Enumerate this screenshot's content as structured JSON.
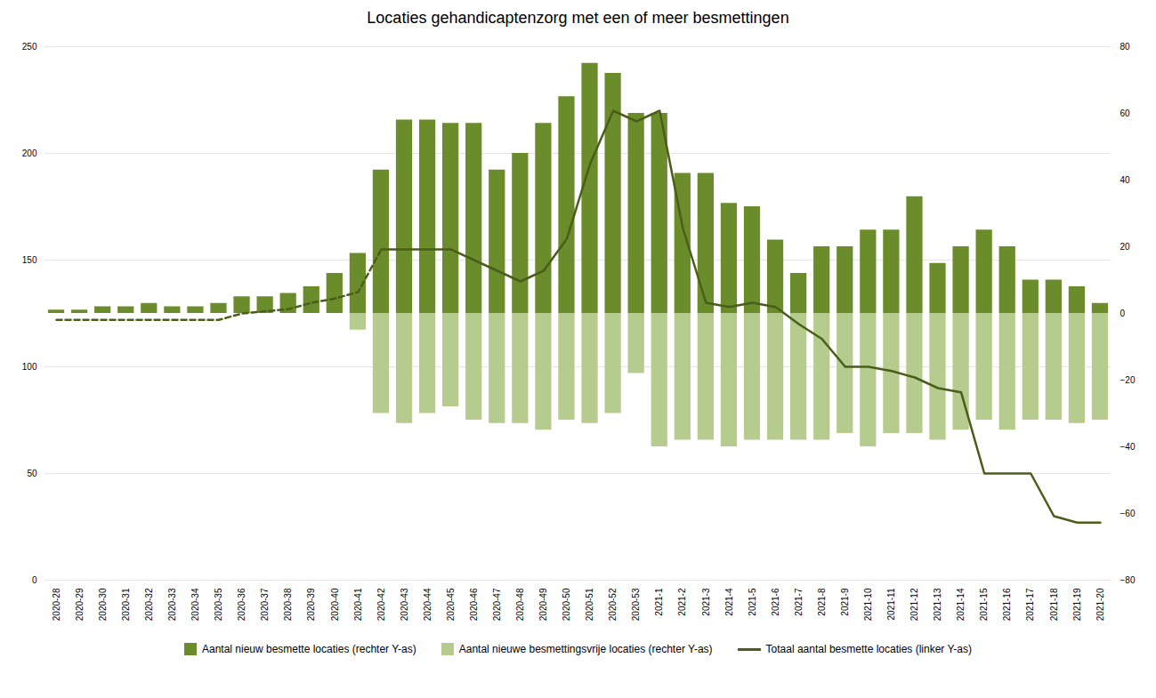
{
  "chart_data": {
    "type": "bar",
    "title": "Locaties gehandicaptenzorg met een of meer besmettingen",
    "categories": [
      "2020-28",
      "2020-29",
      "2020-30",
      "2020-31",
      "2020-32",
      "2020-33",
      "2020-34",
      "2020-35",
      "2020-36",
      "2020-37",
      "2020-38",
      "2020-39",
      "2020-40",
      "2020-41",
      "2020-42",
      "2020-43",
      "2020-44",
      "2020-45",
      "2020-46",
      "2020-47",
      "2020-48",
      "2020-49",
      "2020-50",
      "2020-51",
      "2020-52",
      "2020-53",
      "2021-1",
      "2021-2",
      "2021-3",
      "2021-4",
      "2021-5",
      "2021-6",
      "2021-7",
      "2021-8",
      "2021-9",
      "2021-10",
      "2021-11",
      "2021-12",
      "2021-13",
      "2021-14",
      "2021-15",
      "2021-16",
      "2021-17",
      "2021-18",
      "2021-19",
      "2021-20"
    ],
    "series": [
      {
        "name": "Aantal nieuw besmette locaties (rechter Y-as)",
        "type": "bar",
        "color": "#6a8c2b",
        "axis": "y2",
        "values": [
          1,
          1,
          2,
          2,
          3,
          2,
          2,
          3,
          5,
          5,
          6,
          8,
          12,
          18,
          43,
          58,
          58,
          57,
          57,
          43,
          48,
          57,
          65,
          75,
          72,
          60,
          60,
          42,
          42,
          33,
          32,
          22,
          12,
          20,
          20,
          25,
          25,
          35,
          15,
          20,
          25,
          20,
          10,
          10,
          8,
          3
        ]
      },
      {
        "name": "Aantal nieuwe besmettingsvrije locaties (rechter Y-as)",
        "type": "bar",
        "color": "#b5cc8e",
        "axis": "y2",
        "values": [
          0,
          0,
          0,
          0,
          0,
          0,
          0,
          0,
          0,
          0,
          0,
          0,
          0,
          -5,
          -30,
          -33,
          -30,
          -28,
          -32,
          -33,
          -33,
          -35,
          -32,
          -33,
          -30,
          -18,
          -40,
          -38,
          -38,
          -40,
          -38,
          -38,
          -38,
          -38,
          -36,
          -40,
          -36,
          -36,
          -38,
          -35,
          -32,
          -35,
          -32,
          -32,
          -33,
          -32
        ]
      },
      {
        "type": "line",
        "color": "#4a5e1a",
        "line_style": "dashed",
        "values": [
          122,
          122,
          122,
          122,
          122,
          122,
          122,
          122,
          125,
          126,
          127,
          130,
          132,
          135,
          155,
          null,
          null,
          null,
          null,
          null,
          null,
          null,
          null,
          null,
          null,
          null,
          null,
          null,
          null,
          null,
          null,
          null,
          null,
          null,
          null,
          null,
          null,
          null,
          null,
          null,
          null,
          null,
          null,
          null,
          null,
          null
        ]
      },
      {
        "name": "Totaal aantal besmette locaties (linker Y-as)",
        "type": "line",
        "color": "#4a5e1a",
        "line_style": "solid",
        "values": [
          null,
          null,
          null,
          null,
          null,
          null,
          null,
          null,
          null,
          null,
          null,
          null,
          null,
          null,
          155,
          155,
          155,
          155,
          150,
          145,
          140,
          145,
          160,
          195,
          220,
          215,
          220,
          165,
          130,
          128,
          130,
          128,
          120,
          113,
          100,
          100,
          98,
          95,
          90,
          88,
          50,
          50,
          50,
          30,
          27,
          27
        ]
      }
    ],
    "ylim": [
      0,
      250
    ],
    "yticks": [
      0,
      50,
      100,
      150,
      200,
      250
    ],
    "y2lim": [
      -80,
      80
    ],
    "y2ticks": [
      -80,
      -60,
      -40,
      -20,
      0,
      20,
      40,
      60,
      80
    ],
    "grid": true,
    "legend": "bottom"
  }
}
